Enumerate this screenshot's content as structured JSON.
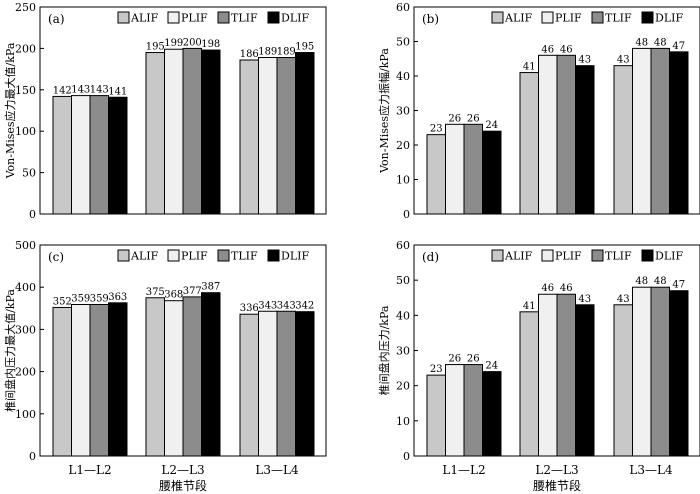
{
  "chart_data": [
    {
      "type": "bar",
      "panel_label": "(a)",
      "categories": [
        "",
        "",
        ""
      ],
      "series": [
        {
          "name": "ALIF",
          "values": [
            142,
            195,
            186
          ]
        },
        {
          "name": "PLIF",
          "values": [
            143,
            199,
            189
          ]
        },
        {
          "name": "TLIF",
          "values": [
            143,
            200,
            189
          ]
        },
        {
          "name": "DLIF",
          "values": [
            141,
            198,
            195
          ]
        }
      ],
      "ylabel": "Von-Mises应力最大值/kPa",
      "xlabel": "",
      "ylim": [
        0,
        250
      ],
      "yticks": [
        0,
        50,
        100,
        150,
        200,
        250
      ],
      "legend": "top"
    },
    {
      "type": "bar",
      "panel_label": "(b)",
      "categories": [
        "",
        "",
        ""
      ],
      "series": [
        {
          "name": "ALIF",
          "values": [
            23,
            41,
            43
          ]
        },
        {
          "name": "PLIF",
          "values": [
            26,
            46,
            48
          ]
        },
        {
          "name": "TLIF",
          "values": [
            26,
            46,
            48
          ]
        },
        {
          "name": "DLIF",
          "values": [
            24,
            43,
            47
          ]
        }
      ],
      "ylabel": "Von-Mises应力振幅/kPa",
      "xlabel": "",
      "ylim": [
        0,
        60
      ],
      "yticks": [
        0,
        10,
        20,
        30,
        40,
        50,
        60
      ],
      "legend": "top"
    },
    {
      "type": "bar",
      "panel_label": "(c)",
      "categories": [
        "L1—L2",
        "L2—L3",
        "L3—L4"
      ],
      "series": [
        {
          "name": "ALIF",
          "values": [
            352,
            375,
            336
          ]
        },
        {
          "name": "PLIF",
          "values": [
            359,
            368,
            343
          ]
        },
        {
          "name": "TLIF",
          "values": [
            359,
            377,
            343
          ]
        },
        {
          "name": "DLIF",
          "values": [
            363,
            387,
            342
          ]
        }
      ],
      "ylabel": "椎间盘内压力最大值/kPa",
      "xlabel": "腰椎节段",
      "ylim": [
        0,
        500
      ],
      "yticks": [
        0,
        100,
        200,
        300,
        400,
        500
      ],
      "legend": "top"
    },
    {
      "type": "bar",
      "panel_label": "(d)",
      "categories": [
        "L1—L2",
        "L2—L3",
        "L3—L4"
      ],
      "series": [
        {
          "name": "ALIF",
          "values": [
            23,
            41,
            43
          ]
        },
        {
          "name": "PLIF",
          "values": [
            26,
            46,
            48
          ]
        },
        {
          "name": "TLIF",
          "values": [
            26,
            46,
            48
          ]
        },
        {
          "name": "DLIF",
          "values": [
            24,
            43,
            47
          ]
        }
      ],
      "ylabel": "椎间盘内压力/kPa",
      "xlabel": "腰椎节段",
      "ylim": [
        0,
        60
      ],
      "yticks": [
        0,
        10,
        20,
        30,
        40,
        50,
        60
      ],
      "legend": "top"
    }
  ],
  "colors": {
    "ALIF": "#c8c8c8",
    "PLIF": "#f0f0f0",
    "TLIF": "#8c8c8c",
    "DLIF": "#000000",
    "axis": "#000000"
  }
}
